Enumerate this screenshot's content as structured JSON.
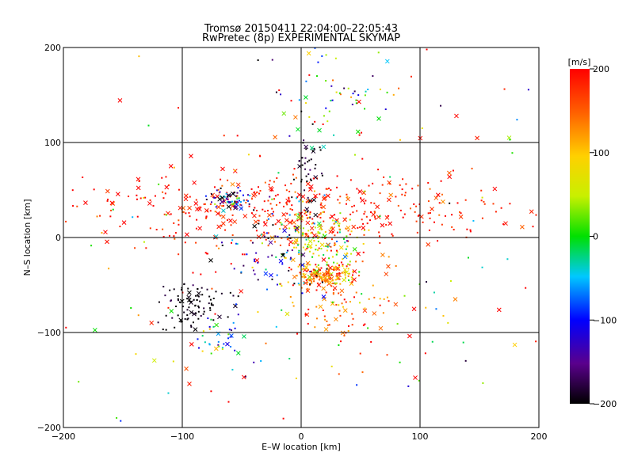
{
  "chart_data": {
    "type": "scatter",
    "title": "Tromsø 20150411 22:04:00–22:05:43",
    "subtitle": "RwPretec (8p) EXPERIMENTAL SKYMAP",
    "xlabel": "E–W location [km]",
    "ylabel": "N–S location [km]",
    "xlim": [
      -200,
      200
    ],
    "ylim": [
      -200,
      200
    ],
    "xticks": [
      -200,
      -100,
      0,
      100,
      200
    ],
    "yticks": [
      -200,
      -100,
      0,
      100,
      200
    ],
    "grid": true,
    "colorbar": {
      "label": "[m/s]",
      "min": -200,
      "max": 200,
      "ticks": [
        200,
        100,
        0,
        -100,
        -200
      ],
      "colormap": "rainbow: black-purple-blue-cyan-green-yellow-red"
    },
    "clusters": [
      {
        "cx": -10,
        "cy": 30,
        "sx": 90,
        "sy": 18,
        "n": 420,
        "v": 185,
        "sv": 20
      },
      {
        "cx": 20,
        "cy": -40,
        "sx": 12,
        "sy": 6,
        "n": 150,
        "v": 140,
        "sv": 50
      },
      {
        "cx": 15,
        "cy": -5,
        "sx": 18,
        "sy": 18,
        "n": 160,
        "v": 60,
        "sv": 70
      },
      {
        "cx": 30,
        "cy": -70,
        "sx": 25,
        "sy": 20,
        "n": 80,
        "v": 150,
        "sv": 40
      },
      {
        "cx": -90,
        "cy": -70,
        "sx": 15,
        "sy": 12,
        "n": 90,
        "v": -195,
        "sv": 10
      },
      {
        "cx": -60,
        "cy": 40,
        "sx": 8,
        "sy": 5,
        "n": 70,
        "v": -110,
        "sv": 80
      },
      {
        "cx": 5,
        "cy": 70,
        "sx": 6,
        "sy": 25,
        "n": 45,
        "v": -190,
        "sv": 15
      },
      {
        "cx": -70,
        "cy": -110,
        "sx": 15,
        "sy": 15,
        "n": 40,
        "v": -60,
        "sv": 60
      },
      {
        "cx": 30,
        "cy": 150,
        "sx": 30,
        "sy": 25,
        "n": 50,
        "v": -40,
        "sv": 110
      },
      {
        "cx": -30,
        "cy": -20,
        "sx": 25,
        "sy": 20,
        "n": 60,
        "v": -150,
        "sv": 60
      },
      {
        "cx": 0,
        "cy": 0,
        "sx": 120,
        "sy": 100,
        "n": 260,
        "v": 120,
        "sv": 140
      }
    ]
  }
}
